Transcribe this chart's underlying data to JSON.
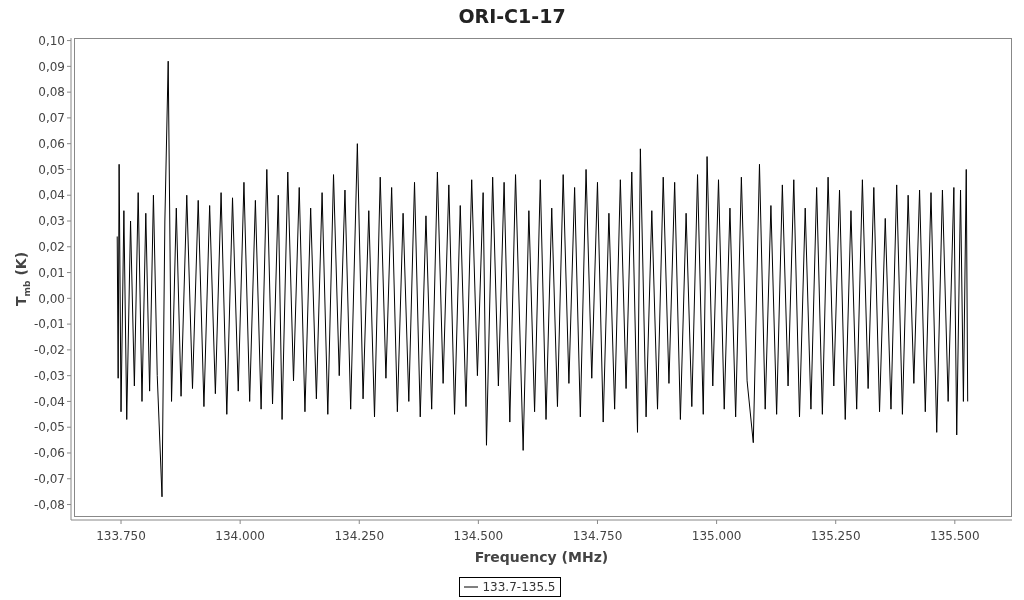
{
  "chart_data": {
    "type": "line",
    "title": "ORI-C1-17",
    "xlabel": "Frequency (MHz)",
    "ylabel": "T$_{mb}$ (K)",
    "legend": "bottom",
    "xlim": [
      133645,
      135620
    ],
    "xticks": [
      {
        "value": 133750,
        "label": "133.750"
      },
      {
        "value": 134000,
        "label": "134.000"
      },
      {
        "value": 134250,
        "label": "134.250"
      },
      {
        "value": 134500,
        "label": "134.500"
      },
      {
        "value": 134750,
        "label": "134.750"
      },
      {
        "value": 135000,
        "label": "135.000"
      },
      {
        "value": 135250,
        "label": "135.250"
      },
      {
        "value": 135500,
        "label": "135.500"
      }
    ],
    "ylim": [
      -0.086,
      0.101
    ],
    "yticks": [
      {
        "value": -0.08,
        "label": "-0,08"
      },
      {
        "value": -0.07,
        "label": "-0,07"
      },
      {
        "value": -0.06,
        "label": "-0,06"
      },
      {
        "value": -0.05,
        "label": "-0,05"
      },
      {
        "value": -0.04,
        "label": "-0,04"
      },
      {
        "value": -0.03,
        "label": "-0,03"
      },
      {
        "value": -0.02,
        "label": "-0,02"
      },
      {
        "value": -0.01,
        "label": "-0,01"
      },
      {
        "value": 0,
        "label": "0,00"
      },
      {
        "value": 0.01,
        "label": "0,01"
      },
      {
        "value": 0.02,
        "label": "0,02"
      },
      {
        "value": 0.03,
        "label": "0,03"
      },
      {
        "value": 0.04,
        "label": "0,04"
      },
      {
        "value": 0.05,
        "label": "0,05"
      },
      {
        "value": 0.06,
        "label": "0,06"
      },
      {
        "value": 0.07,
        "label": "0,07"
      },
      {
        "value": 0.08,
        "label": "0,08"
      },
      {
        "value": 0.09,
        "label": "0,09"
      },
      {
        "value": 0.1,
        "label": "0,10"
      }
    ],
    "x": [
      133742,
      133744,
      133746,
      133750,
      133756,
      133762,
      133770,
      133778,
      133786,
      133794,
      133802,
      133810,
      133818,
      133826,
      133836,
      133842,
      133849,
      133856,
      133866,
      133876,
      133888,
      133900,
      133912,
      133924,
      133936,
      133948,
      133960,
      133972,
      133984,
      133996,
      134008,
      134020,
      134032,
      134044,
      134056,
      134068,
      134080,
      134088,
      134100,
      134112,
      134124,
      134136,
      134148,
      134160,
      134172,
      134184,
      134196,
      134208,
      134220,
      134232,
      134246,
      134258,
      134270,
      134282,
      134294,
      134306,
      134318,
      134330,
      134342,
      134354,
      134366,
      134378,
      134390,
      134402,
      134414,
      134426,
      134438,
      134450,
      134462,
      134474,
      134486,
      134498,
      134510,
      134517,
      134530,
      134542,
      134554,
      134566,
      134578,
      134594,
      134606,
      134618,
      134630,
      134642,
      134654,
      134666,
      134678,
      134690,
      134702,
      134714,
      134726,
      134738,
      134750,
      134762,
      134774,
      134786,
      134798,
      134810,
      134822,
      134834,
      134840,
      134852,
      134864,
      134876,
      134888,
      134900,
      134912,
      134924,
      134936,
      134948,
      134960,
      134972,
      134980,
      134992,
      135004,
      135016,
      135028,
      135040,
      135052,
      135064,
      135077,
      135090,
      135102,
      135114,
      135126,
      135138,
      135150,
      135162,
      135174,
      135186,
      135198,
      135210,
      135222,
      135234,
      135246,
      135258,
      135270,
      135282,
      135294,
      135306,
      135318,
      135330,
      135342,
      135354,
      135366,
      135378,
      135390,
      135402,
      135414,
      135426,
      135438,
      135450,
      135462,
      135474,
      135486,
      135498,
      135504,
      135512,
      135518,
      135524,
      135527
    ],
    "series": [
      {
        "name": "133.7-135.5",
        "color": "#000000",
        "values": [
          0.024,
          -0.031,
          0.052,
          -0.044,
          0.034,
          -0.047,
          0.03,
          -0.034,
          0.041,
          -0.04,
          0.033,
          -0.036,
          0.04,
          -0.03,
          -0.077,
          0.03,
          0.092,
          -0.04,
          0.035,
          -0.038,
          0.04,
          -0.035,
          0.038,
          -0.042,
          0.036,
          -0.037,
          0.041,
          -0.045,
          0.039,
          -0.036,
          0.045,
          -0.04,
          0.038,
          -0.043,
          0.05,
          -0.041,
          0.04,
          -0.047,
          0.049,
          -0.032,
          0.043,
          -0.044,
          0.035,
          -0.039,
          0.041,
          -0.045,
          0.048,
          -0.03,
          0.042,
          -0.043,
          0.06,
          -0.039,
          0.034,
          -0.046,
          0.047,
          -0.031,
          0.043,
          -0.044,
          0.033,
          -0.04,
          0.045,
          -0.046,
          0.032,
          -0.043,
          0.049,
          -0.033,
          0.044,
          -0.045,
          0.036,
          -0.042,
          0.046,
          -0.03,
          0.041,
          -0.057,
          0.047,
          -0.034,
          0.045,
          -0.048,
          0.048,
          -0.059,
          0.034,
          -0.044,
          0.046,
          -0.047,
          0.035,
          -0.042,
          0.048,
          -0.033,
          0.043,
          -0.046,
          0.05,
          -0.031,
          0.045,
          -0.048,
          0.033,
          -0.043,
          0.046,
          -0.035,
          0.049,
          -0.052,
          0.058,
          -0.046,
          0.034,
          -0.043,
          0.047,
          -0.033,
          0.045,
          -0.047,
          0.033,
          -0.042,
          0.048,
          -0.045,
          0.055,
          -0.034,
          0.046,
          -0.043,
          0.035,
          -0.046,
          0.047,
          -0.032,
          -0.056,
          0.052,
          -0.043,
          0.036,
          -0.045,
          0.044,
          -0.034,
          0.046,
          -0.046,
          0.035,
          -0.043,
          0.043,
          -0.045,
          0.047,
          -0.034,
          0.042,
          -0.047,
          0.034,
          -0.043,
          0.046,
          -0.035,
          0.043,
          -0.044,
          0.031,
          -0.043,
          0.044,
          -0.045,
          0.04,
          -0.033,
          0.042,
          -0.044,
          0.041,
          -0.052,
          0.042,
          -0.04,
          0.043,
          -0.053,
          0.042,
          -0.04,
          0.05,
          -0.04
        ]
      }
    ]
  }
}
